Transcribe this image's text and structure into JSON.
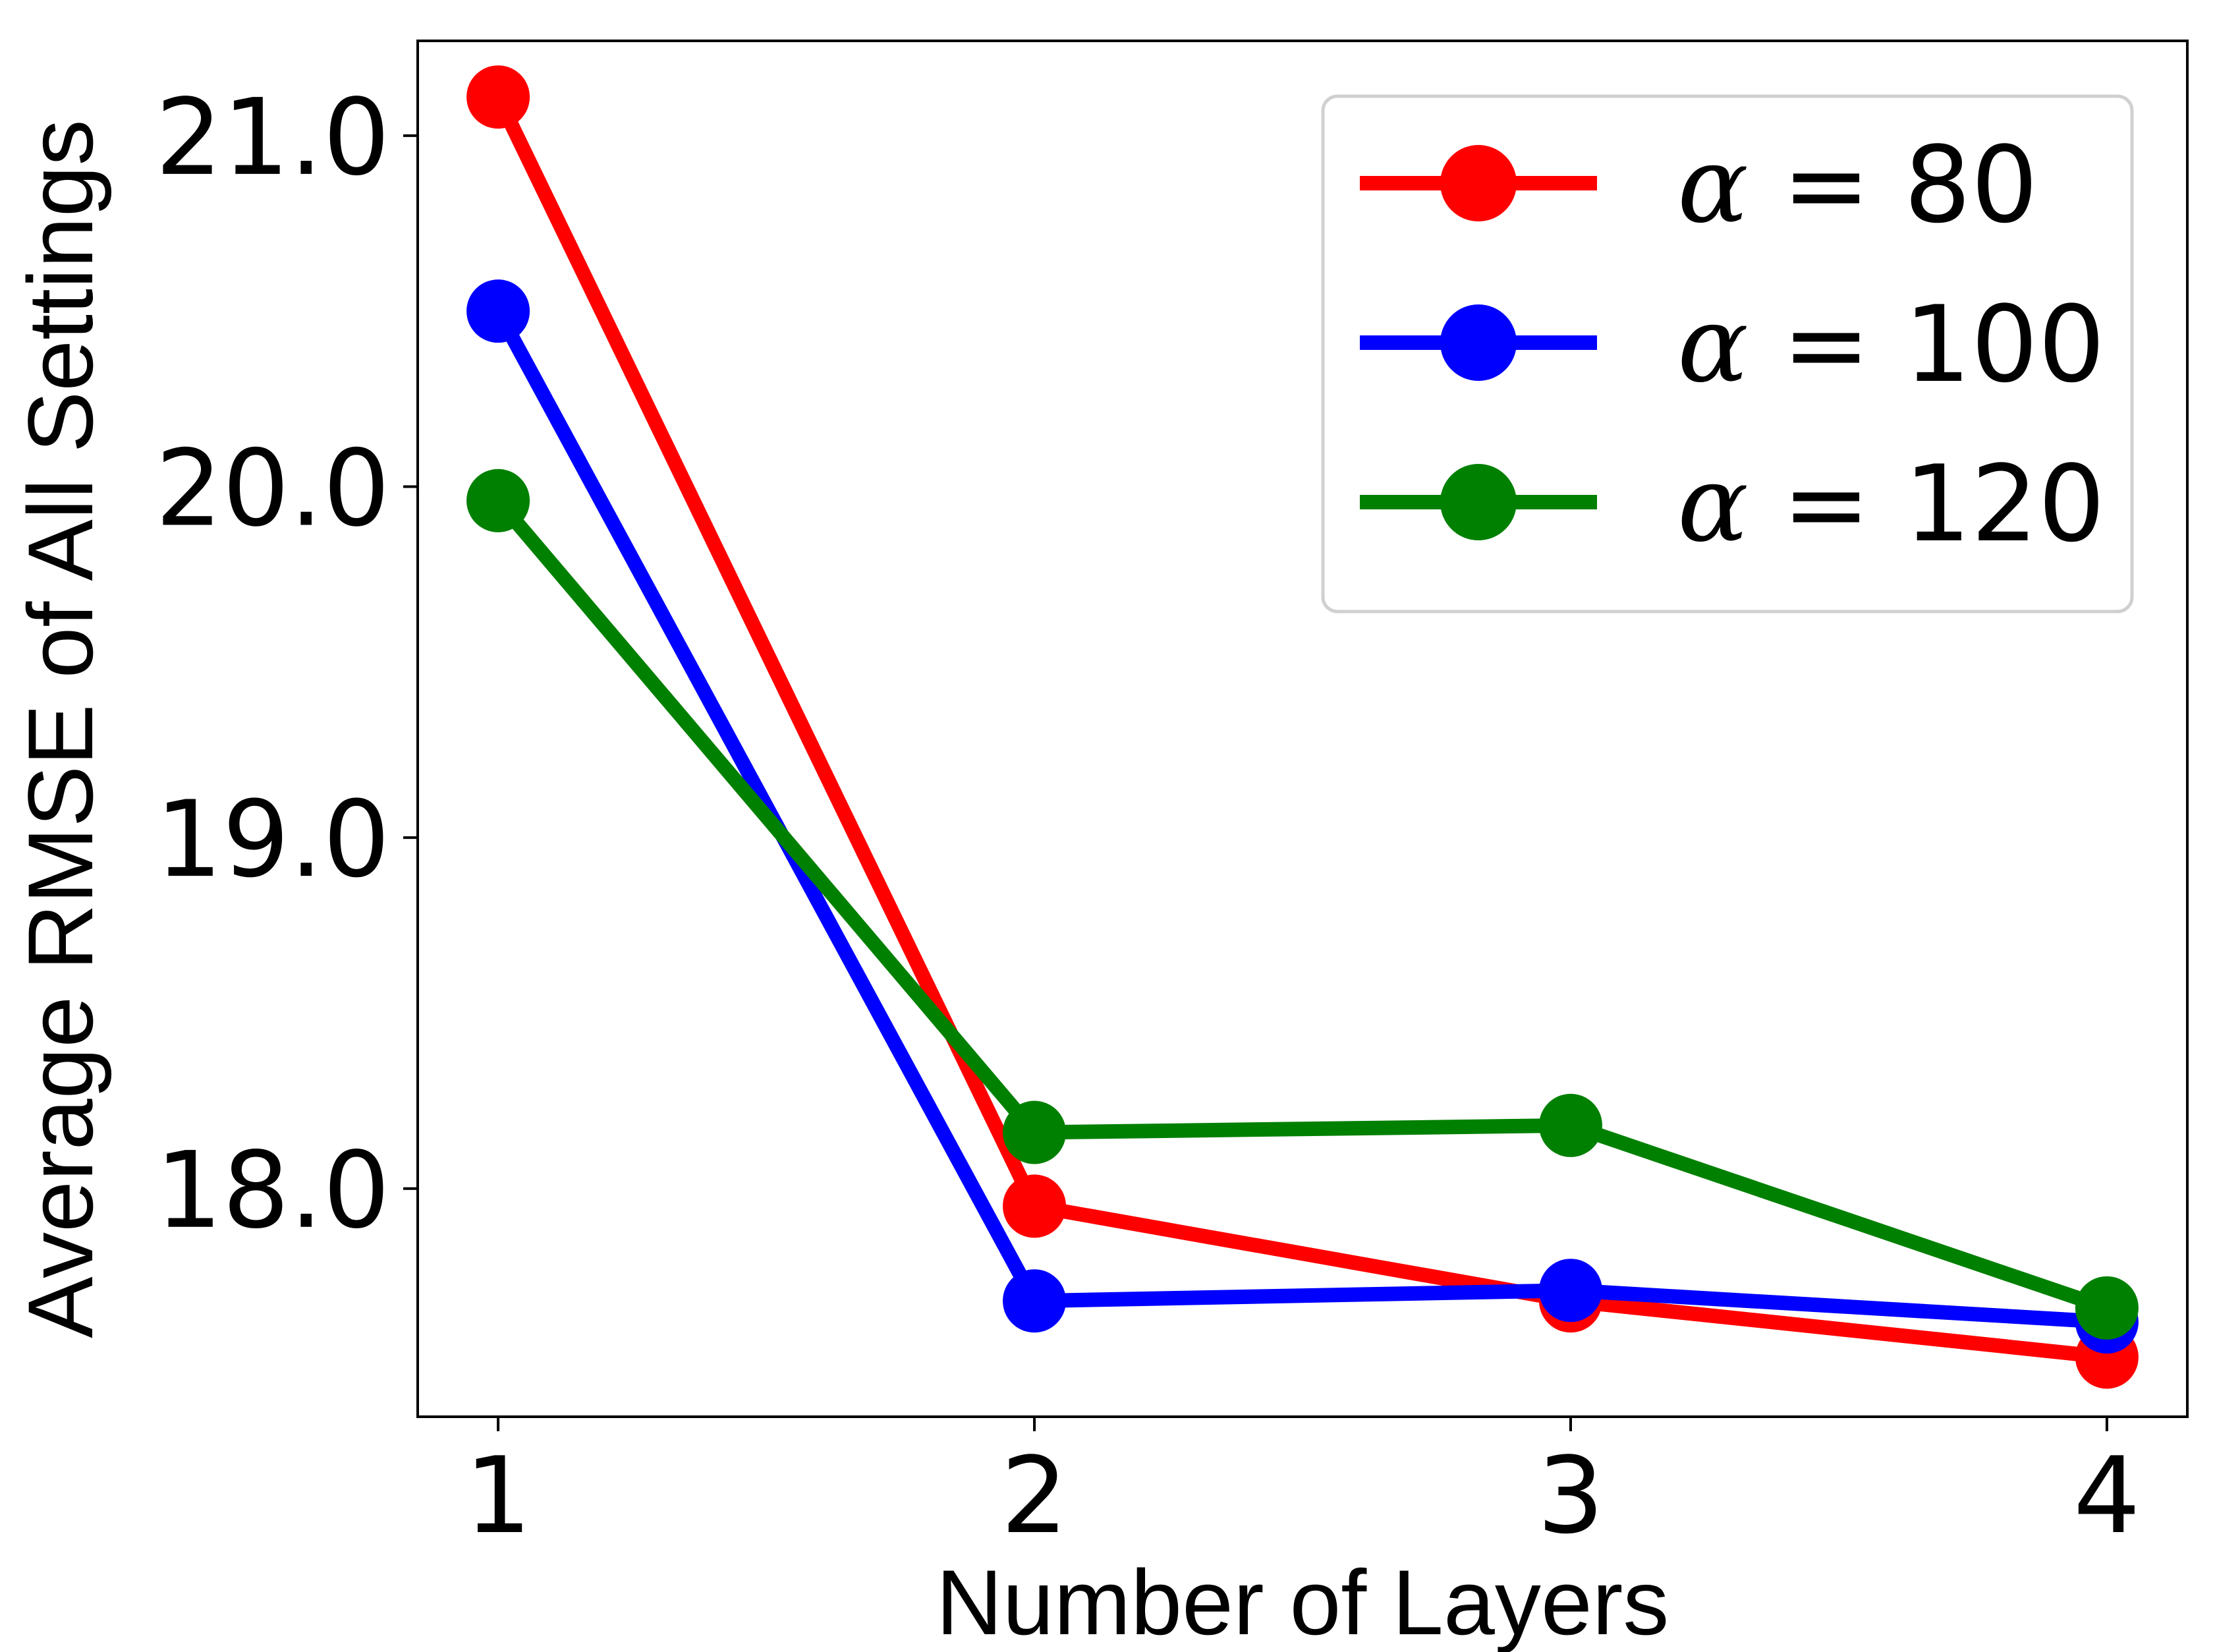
{
  "chart_data": {
    "type": "line",
    "title": "",
    "xlabel": "Number of Layers",
    "ylabel": "Average RMSE of All Settings",
    "x": [
      1,
      2,
      3,
      4
    ],
    "xticks": [
      "1",
      "2",
      "3",
      "4"
    ],
    "yticks": [
      "18.0",
      "19.0",
      "20.0",
      "21.0"
    ],
    "ylim": [
      17.35,
      21.27
    ],
    "xlim": [
      0.85,
      4.15
    ],
    "grid": false,
    "legend_position": "top-right",
    "series": [
      {
        "name": "α = 80",
        "symbol": "α",
        "label_rest": " = 80",
        "color": "#ff0000",
        "values": [
          21.11,
          17.95,
          17.68,
          17.52
        ]
      },
      {
        "name": "α = 100",
        "symbol": "α",
        "label_rest": " = 100",
        "color": "#0000ff",
        "values": [
          20.5,
          17.68,
          17.71,
          17.62
        ]
      },
      {
        "name": "α = 120",
        "symbol": "α",
        "label_rest": " = 120",
        "color": "#008000",
        "values": [
          19.96,
          18.16,
          18.18,
          17.66
        ]
      }
    ]
  }
}
